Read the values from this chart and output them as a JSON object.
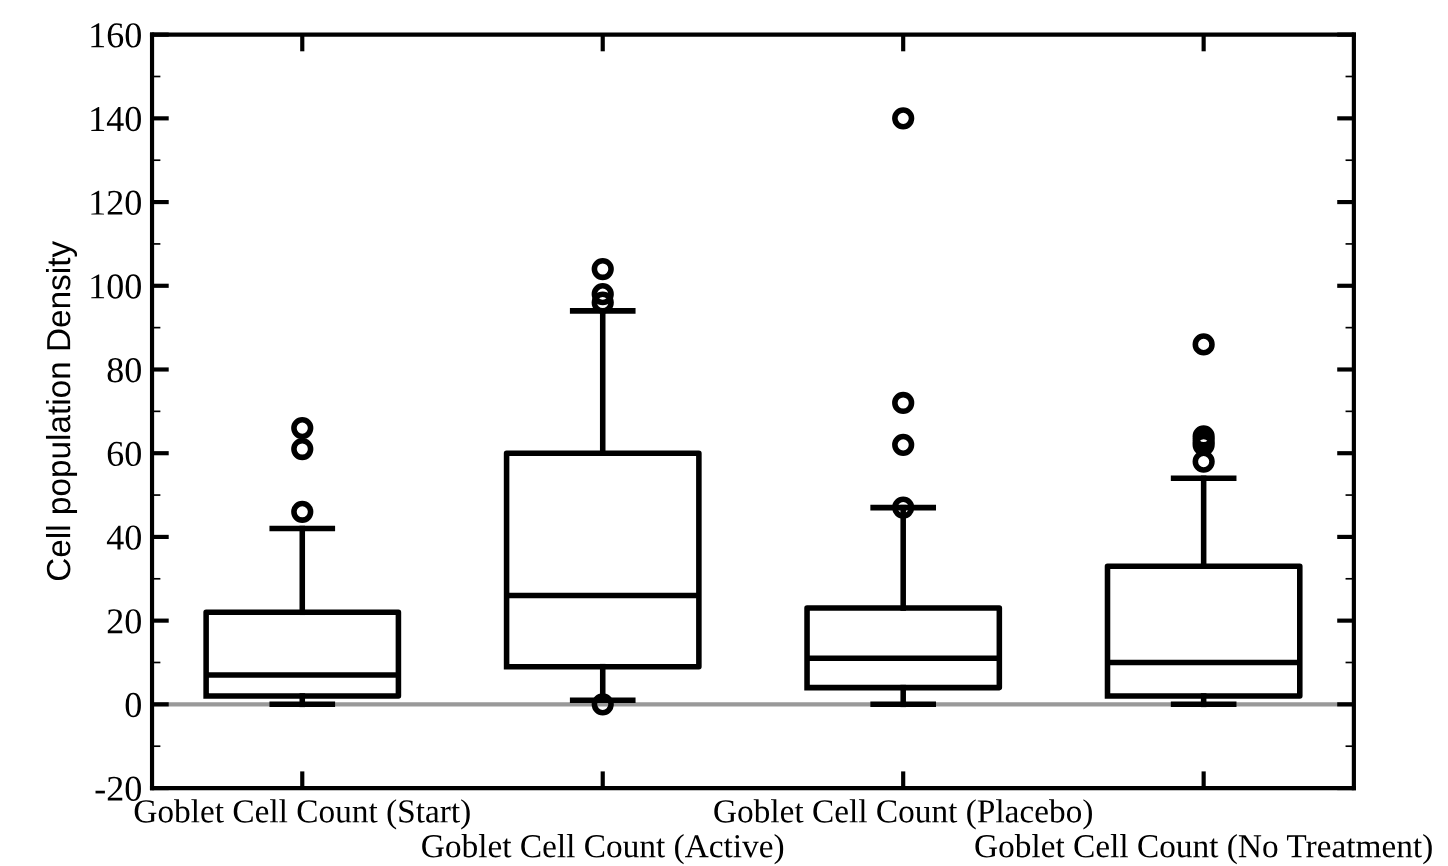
{
  "chart_data": {
    "type": "box",
    "ylabel": "Cell population Density",
    "categories": [
      "Goblet Cell Count (Start)",
      "Goblet Cell Count (Active)",
      "Goblet Cell Count (Placebo)",
      "Goblet Cell Count (No Treatment)"
    ],
    "boxes": [
      {
        "low": 0,
        "q1": 2,
        "median": 7,
        "q3": 22,
        "high": 42,
        "outliers": [
          46,
          61,
          66
        ]
      },
      {
        "low": 1,
        "q1": 9,
        "median": 26,
        "q3": 60,
        "high": 94,
        "outliers": [
          0,
          96,
          98,
          104
        ]
      },
      {
        "low": 0,
        "q1": 4,
        "median": 11,
        "q3": 23,
        "high": 47,
        "outliers": [
          47,
          62,
          72,
          140
        ]
      },
      {
        "low": 0,
        "q1": 2,
        "median": 10,
        "q3": 33,
        "high": 54,
        "outliers": [
          58,
          62,
          63,
          64,
          86
        ]
      }
    ],
    "ylim": [
      -20,
      160
    ],
    "yticks": [
      -20,
      0,
      20,
      40,
      60,
      80,
      100,
      120,
      140,
      160
    ],
    "ref_lines": [
      {
        "axis": "y",
        "value": 0,
        "color": "#999999"
      }
    ],
    "grid": false
  }
}
